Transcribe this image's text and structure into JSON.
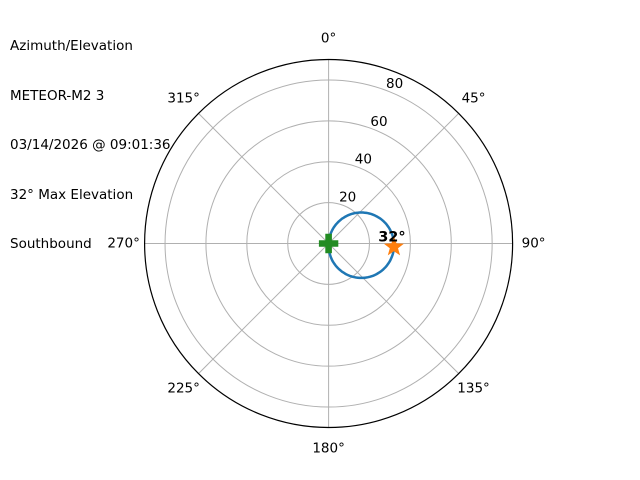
{
  "header": {
    "title_lines": [
      "Azimuth/Elevation",
      "METEOR-M2 3",
      "03/14/2026 @ 09:01:36",
      "32° Max Elevation",
      "Southbound"
    ]
  },
  "chart_data": {
    "type": "line",
    "projection": "polar",
    "description": "Satellite pass azimuth/elevation sky plot",
    "title_lines": [
      "Azimuth/Elevation",
      "METEOR-M2 3",
      "03/14/2026 @ 09:01:36",
      "32° Max Elevation",
      "Southbound"
    ],
    "angular_axis": {
      "zero_location": "top",
      "direction": "clockwise",
      "ticks": [
        {
          "deg": 0,
          "label": "0°"
        },
        {
          "deg": 45,
          "label": "45°"
        },
        {
          "deg": 90,
          "label": "90°"
        },
        {
          "deg": 135,
          "label": "135°"
        },
        {
          "deg": 180,
          "label": "180°"
        },
        {
          "deg": 225,
          "label": "225°"
        },
        {
          "deg": 270,
          "label": "270°"
        },
        {
          "deg": 315,
          "label": "315°"
        }
      ]
    },
    "radial_axis": {
      "min": 0,
      "max": 90,
      "ticks": [
        20,
        40,
        60,
        80
      ],
      "tick_labels": [
        "20",
        "40",
        "60",
        "80"
      ],
      "tick_label_angle_deg": 22.5,
      "grid": true
    },
    "series": [
      {
        "name": "pass-track",
        "color": "#1f77b4",
        "line_width": 2.5,
        "aos_azimuth_deg": 3,
        "los_azimuth_deg": 183,
        "max_elevation_deg": 32,
        "max_elevation_azimuth_deg": 93,
        "points_az_el": [
          [
            3,
            0
          ],
          [
            15,
            6.6
          ],
          [
            30,
            14.5
          ],
          [
            45,
            21.4
          ],
          [
            60,
            26.8
          ],
          [
            75,
            30.4
          ],
          [
            90,
            32.0
          ],
          [
            93,
            32.0
          ],
          [
            105,
            31.3
          ],
          [
            120,
            28.5
          ],
          [
            135,
            23.8
          ],
          [
            150,
            17.4
          ],
          [
            165,
            9.9
          ],
          [
            180,
            1.7
          ],
          [
            183,
            0
          ]
        ]
      }
    ],
    "markers": [
      {
        "name": "center-marker",
        "shape": "filled-plus",
        "color": "#228b22",
        "azimuth_deg": 0,
        "elevation_deg": 0,
        "label": ""
      },
      {
        "name": "max-elevation-marker",
        "shape": "star",
        "color": "#ff7f0e",
        "azimuth_deg": 93,
        "elevation_deg": 32,
        "label": "32°"
      }
    ],
    "colors": {
      "grid": "#b0b0b0",
      "spine": "#000000",
      "background": "#ffffff",
      "text": "#000000"
    }
  }
}
